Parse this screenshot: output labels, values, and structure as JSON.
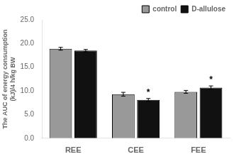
{
  "chart_data": {
    "type": "bar",
    "categories": [
      "REE",
      "CEE",
      "FEE"
    ],
    "series": [
      {
        "name": "control",
        "color": "#999999",
        "values": [
          18.9,
          9.3,
          9.8
        ],
        "errors": [
          0.3,
          0.4,
          0.3
        ]
      },
      {
        "name": "D-allulose",
        "color": "#111111",
        "values": [
          18.5,
          8.1,
          10.7
        ],
        "errors": [
          0.25,
          0.3,
          0.35
        ]
      }
    ],
    "ylabel": "The AUC of energy consumption\n(kJ)/4 h/kg BW",
    "ylim": [
      0,
      25.0
    ],
    "yticks": [
      {
        "value": 0,
        "label": "0.0"
      },
      {
        "value": 5,
        "label": "5.0"
      },
      {
        "value": 10,
        "label": "10.0"
      },
      {
        "value": 15,
        "label": "15.0"
      },
      {
        "value": 20,
        "label": "20.0"
      },
      {
        "value": 25,
        "label": "25.0"
      }
    ],
    "annotations": [
      {
        "text": "*",
        "category": "CEE",
        "series": "D-allulose"
      },
      {
        "text": "*",
        "category": "FEE",
        "series": "D-allulose"
      }
    ],
    "legend": "upper right",
    "grid": false
  }
}
